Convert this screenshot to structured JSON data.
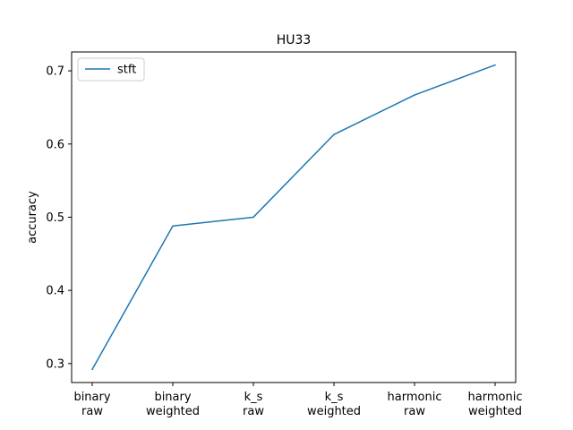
{
  "chart_data": {
    "type": "line",
    "title": "HU33",
    "xlabel": "",
    "ylabel": "accuracy",
    "categories": [
      [
        "binary",
        "raw"
      ],
      [
        "binary",
        "weighted"
      ],
      [
        "k_s",
        "raw"
      ],
      [
        "k_s",
        "weighted"
      ],
      [
        "harmonic",
        "raw"
      ],
      [
        "harmonic",
        "weighted"
      ]
    ],
    "series": [
      {
        "name": "stft",
        "color": "#1f77b4",
        "values": [
          0.292,
          0.488,
          0.5,
          0.613,
          0.667,
          0.708
        ]
      }
    ],
    "ylim": [
      0.2741,
      0.7258
    ],
    "yticks": [
      0.3,
      0.4,
      0.5,
      0.6,
      0.7
    ],
    "ytick_labels": [
      "0.3",
      "0.4",
      "0.5",
      "0.6",
      "0.7"
    ],
    "grid": false,
    "legend_position": "upper-left"
  }
}
